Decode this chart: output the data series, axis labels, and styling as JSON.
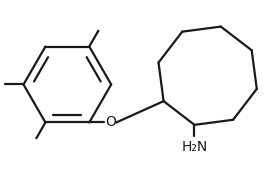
{
  "bg_color": "#ffffff",
  "line_color": "#1a1a1a",
  "line_width": 1.6,
  "text_color": "#1a1a1a",
  "o_label": "O",
  "nh2_label": "H₂N",
  "o_fontsize": 10,
  "nh2_fontsize": 10
}
